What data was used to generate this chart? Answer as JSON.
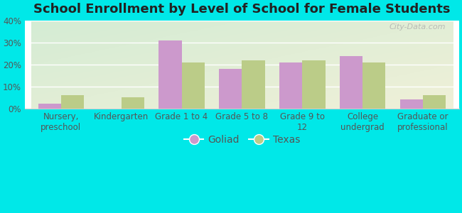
{
  "title": "School Enrollment by Level of School for Female Students",
  "categories": [
    "Nursery,\npreschool",
    "Kindergarten",
    "Grade 1 to 4",
    "Grade 5 to 8",
    "Grade 9 to\n12",
    "College\nundergrad",
    "Graduate or\nprofessional"
  ],
  "goliad": [
    2,
    0,
    31,
    18,
    21,
    24,
    4
  ],
  "texas": [
    6,
    5,
    21,
    22,
    22,
    21,
    6
  ],
  "goliad_color": "#cc99cc",
  "texas_color": "#bbcc88",
  "background_outer": "#00e8e8",
  "ylim": [
    0,
    40
  ],
  "yticks": [
    0,
    10,
    20,
    30,
    40
  ],
  "ytick_labels": [
    "0%",
    "10%",
    "20%",
    "30%",
    "40%"
  ],
  "legend_labels": [
    "Goliad",
    "Texas"
  ],
  "title_fontsize": 13,
  "tick_fontsize": 8.5,
  "bar_width": 0.38,
  "watermark": "City-Data.com"
}
